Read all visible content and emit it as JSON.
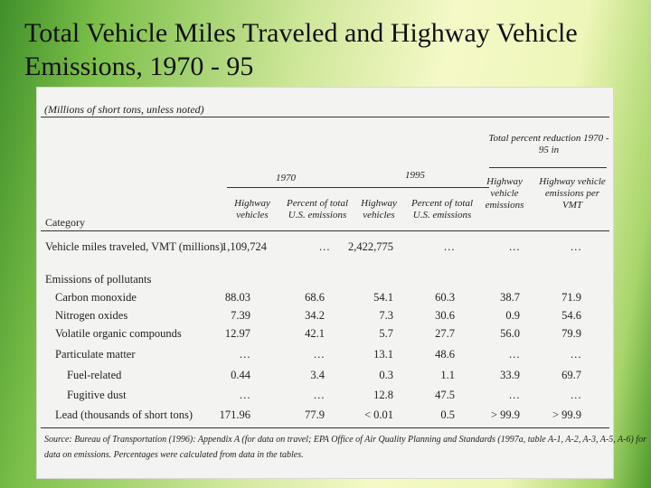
{
  "slide": {
    "title": "Total Vehicle Miles Traveled and Highway Vehicle Emissions, 1970 - 95"
  },
  "table": {
    "units_note": "(Millions of short tons, unless noted)",
    "header": {
      "reduction_group": "Total percent reduction 1970 - 95 in",
      "year_1970": "1970",
      "year_1995": "1995",
      "category": "Category",
      "columns": [
        "Highway vehicles",
        "Percent of total U.S. emissions",
        "Highway vehicles",
        "Percent of total U.S. emissions",
        "Highway vehicle emissions",
        "Highway vehicle emissions per VMT"
      ]
    },
    "rows": [
      {
        "label": "Vehicle miles traveled, VMT (millions)",
        "values": [
          "1,109,724",
          "…",
          "2,422,775",
          "…",
          "…",
          "…"
        ]
      },
      {
        "label": "Emissions of pollutants",
        "values": [
          "",
          "",
          "",
          "",
          "",
          ""
        ]
      },
      {
        "label": "Carbon monoxide",
        "values": [
          "88.03",
          "68.6",
          "54.1",
          "60.3",
          "38.7",
          "71.9"
        ]
      },
      {
        "label": "Nitrogen oxides",
        "values": [
          "7.39",
          "34.2",
          "7.3",
          "30.6",
          "0.9",
          "54.6"
        ]
      },
      {
        "label": "Volatile organic compounds",
        "values": [
          "12.97",
          "42.1",
          "5.7",
          "27.7",
          "56.0",
          "79.9"
        ]
      },
      {
        "label": "Particulate matter",
        "values": [
          "…",
          "…",
          "13.1",
          "48.6",
          "…",
          "…"
        ]
      },
      {
        "label": "Fuel-related",
        "values": [
          "0.44",
          "3.4",
          "0.3",
          "1.1",
          "33.9",
          "69.7"
        ]
      },
      {
        "label": "Fugitive dust",
        "values": [
          "…",
          "…",
          "12.8",
          "47.5",
          "…",
          "…"
        ]
      },
      {
        "label": "Lead (thousands of short tons)",
        "values": [
          "171.96",
          "77.9",
          "< 0.01",
          "0.5",
          "> 99.9",
          "> 99.9"
        ]
      }
    ],
    "source_line1": "Source: Bureau of Transportation (1996): Appendix A (for data on travel; EPA Office of Air Quality Planning and Standards (1997a, table A-1, A-2, A-3, A-5, A-6) for",
    "source_line2": "data on emissions. Percentages were calculated from data in the tables."
  }
}
